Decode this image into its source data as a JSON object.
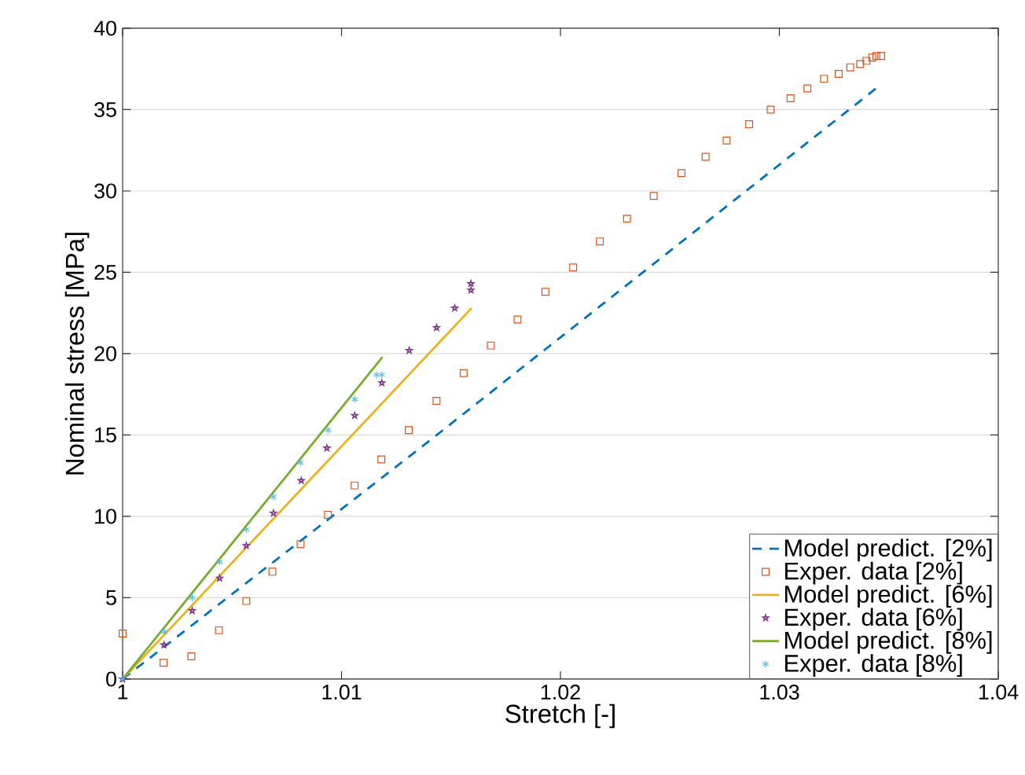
{
  "chart_data": {
    "type": "line",
    "xlabel": "Stretch [-]",
    "ylabel": "Nominal stress [MPa]",
    "xlim": [
      1,
      1.04
    ],
    "ylim": [
      0,
      40
    ],
    "xticks": [
      1,
      1.01,
      1.02,
      1.03,
      1.04
    ],
    "yticks": [
      0,
      5,
      10,
      15,
      20,
      25,
      30,
      35,
      40
    ],
    "grid": "y",
    "legend": "bottom right",
    "series": [
      {
        "name": "Model predict. [2%]",
        "line_style": "dashed",
        "marker": "none",
        "color": "#0072bd",
        "x": [
          1,
          1.01378,
          1.0346
        ],
        "values": [
          0,
          14.4,
          36.5
        ]
      },
      {
        "name": "Exper. data [2%]",
        "type": "scatter",
        "marker": "square",
        "color": "#d95319",
        "x": [
          1.0,
          1.00187,
          1.00314,
          1.0044,
          1.00565,
          1.00684,
          1.00813,
          1.00938,
          1.0106,
          1.01182,
          1.01307,
          1.01434,
          1.01558,
          1.01682,
          1.01804,
          1.01931,
          1.02058,
          1.0218,
          1.02304,
          1.02426,
          1.02553,
          1.02663,
          1.02759,
          1.02862,
          1.0296,
          1.03051,
          1.03128,
          1.03204,
          1.03271,
          1.03324,
          1.03369,
          1.03398,
          1.03424,
          1.03443,
          1.03465
        ],
        "values": [
          2.8,
          1.0,
          1.4,
          3.0,
          4.8,
          6.6,
          8.3,
          10.1,
          11.9,
          13.5,
          15.3,
          17.1,
          18.8,
          20.5,
          22.1,
          23.8,
          25.3,
          26.9,
          28.3,
          29.7,
          31.1,
          32.1,
          33.1,
          34.1,
          35.0,
          35.7,
          36.3,
          36.9,
          37.2,
          37.6,
          37.8,
          38.0,
          38.2,
          38.3,
          38.3
        ]
      },
      {
        "name": "Model predict. [6%]",
        "line_style": "solid",
        "marker": "none",
        "color": "#edb120",
        "x": [
          1,
          1.01594
        ],
        "values": [
          0,
          22.8
        ]
      },
      {
        "name": "Exper. data [6%]",
        "type": "scatter",
        "marker": "star",
        "color": "#7e2f8e",
        "x": [
          1,
          1.00189,
          1.00318,
          1.00443,
          1.00565,
          1.00689,
          1.00816,
          1.00933,
          1.0106,
          1.01184,
          1.01309,
          1.01434,
          1.01517,
          1.01591,
          1.01591
        ],
        "values": [
          0,
          2.1,
          4.2,
          6.2,
          8.2,
          10.2,
          12.2,
          14.2,
          16.2,
          18.2,
          20.2,
          21.6,
          22.8,
          23.9,
          24.3
        ]
      },
      {
        "name": "Model predict. [8%]",
        "line_style": "solid",
        "marker": "none",
        "color": "#77ac30",
        "x": [
          1,
          1.01187
        ],
        "values": [
          0,
          19.8
        ]
      },
      {
        "name": "Exper. data [8%]",
        "type": "scatter",
        "marker": "cross",
        "color": "#4dbeee",
        "x": [
          1,
          1.00191,
          1.00318,
          1.00443,
          1.00565,
          1.00689,
          1.00813,
          1.00938,
          1.0106,
          1.0116,
          1.01184
        ],
        "values": [
          0,
          2.9,
          5.0,
          7.2,
          9.2,
          11.2,
          13.3,
          15.3,
          17.2,
          18.7,
          18.7
        ]
      }
    ]
  }
}
